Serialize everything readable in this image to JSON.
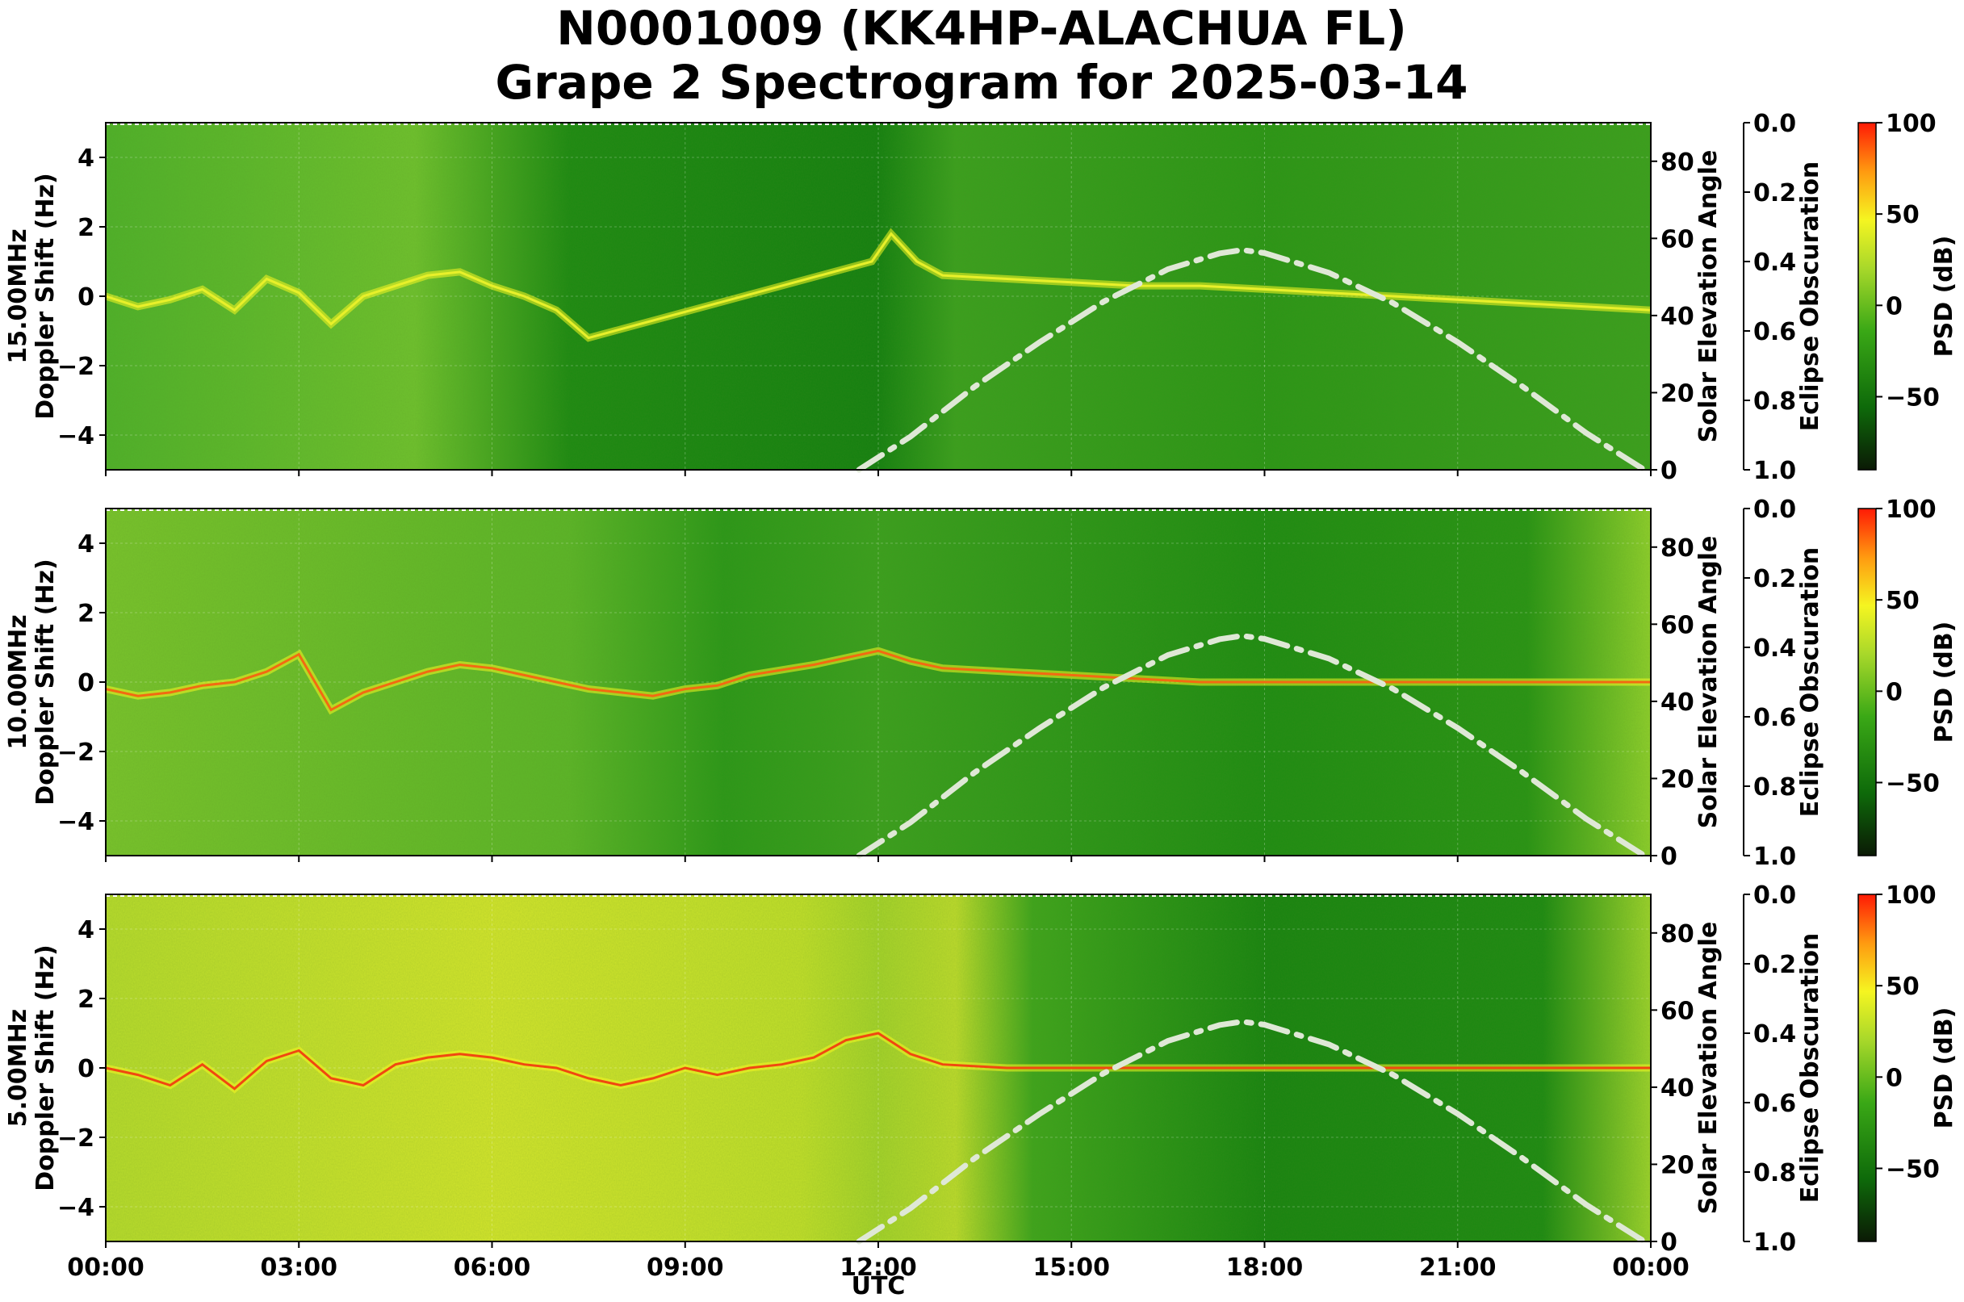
{
  "title_line1": "N0001009 (KK4HP-ALACHUA FL)",
  "title_line2": "Grape 2 Spectrogram for 2025-03-14",
  "chart_data": {
    "type": "heatmap",
    "shared_x": {
      "label": "UTC",
      "ticks": [
        "00:00",
        "03:00",
        "06:00",
        "09:00",
        "12:00",
        "15:00",
        "18:00",
        "21:00",
        "00:00"
      ],
      "range_hours": [
        0,
        24
      ]
    },
    "ylabel": "Doppler Shift (Hz)",
    "ylim": [
      -5,
      5
    ],
    "y_ticks": [
      4,
      2,
      0,
      -2,
      -4
    ],
    "right_axis": {
      "label": "Solar Elevation Angle",
      "ylim": [
        0,
        90
      ],
      "ticks": [
        0,
        20,
        40,
        60,
        80
      ]
    },
    "obscuration_axis": {
      "label": "Eclipse Obscuration",
      "ylim": [
        1.0,
        0.0
      ],
      "ticks": [
        "0.0",
        "0.2",
        "0.4",
        "0.6",
        "0.8",
        "1.0"
      ]
    },
    "colorbar": {
      "label": "PSD (dB)",
      "range": [
        -90,
        100
      ],
      "ticks": [
        "100",
        "50",
        "0",
        "−50"
      ],
      "colors": [
        "#0b1a05",
        "#0e6a0a",
        "#3aa816",
        "#a8d82a",
        "#f5f521",
        "#ff9a10",
        "#ff1a05"
      ]
    },
    "solar_elevation": {
      "x_hours": [
        11.7,
        12.5,
        13.5,
        14.5,
        15.5,
        16.5,
        17.3,
        17.65,
        18.0,
        19.0,
        20.0,
        21.0,
        22.0,
        23.0,
        23.9
      ],
      "values": [
        0,
        8.6,
        21.6,
        33.0,
        43.6,
        52.0,
        56.1,
        57.0,
        56.2,
        51.1,
        43.2,
        33.1,
        21.7,
        9.5,
        0
      ]
    },
    "panels": [
      {
        "freq_label": "15.00MHz",
        "trace_x_hours": [
          0,
          0.5,
          1,
          1.5,
          2,
          2.5,
          3,
          3.5,
          4,
          4.5,
          5,
          5.5,
          6,
          6.5,
          7,
          7.5,
          11.9,
          12.2,
          12.6,
          13,
          14,
          15,
          16,
          17,
          18,
          19,
          20,
          21,
          22,
          23,
          24
        ],
        "trace_values": [
          0,
          -0.3,
          -0.1,
          0.2,
          -0.4,
          0.5,
          0.1,
          -0.8,
          0.0,
          0.3,
          0.6,
          0.7,
          0.3,
          0.0,
          -0.4,
          -1.2,
          1.0,
          1.8,
          1.0,
          0.6,
          0.5,
          0.4,
          0.3,
          0.3,
          0.2,
          0.1,
          0.0,
          -0.1,
          -0.2,
          -0.3,
          -0.4
        ]
      },
      {
        "freq_label": "10.00MHz",
        "trace_x_hours": [
          0,
          0.5,
          1,
          1.5,
          2,
          2.5,
          3,
          3.5,
          4,
          4.5,
          5,
          5.5,
          6,
          6.5,
          7,
          7.5,
          8,
          8.5,
          9,
          9.5,
          10,
          11,
          12,
          12.5,
          13,
          14,
          15,
          16,
          17,
          18,
          19,
          20,
          21,
          22,
          23,
          24
        ],
        "trace_values": [
          -0.2,
          -0.4,
          -0.3,
          -0.1,
          0.0,
          0.3,
          0.8,
          -0.8,
          -0.3,
          0.0,
          0.3,
          0.5,
          0.4,
          0.2,
          0.0,
          -0.2,
          -0.3,
          -0.4,
          -0.2,
          -0.1,
          0.2,
          0.5,
          0.9,
          0.6,
          0.4,
          0.3,
          0.2,
          0.1,
          0.0,
          0.0,
          0.0,
          0.0,
          0.0,
          0.0,
          0.0,
          0.0
        ]
      },
      {
        "freq_label": "5.00MHz",
        "trace_x_hours": [
          0,
          0.5,
          1,
          1.5,
          2,
          2.5,
          3,
          3.5,
          4,
          4.5,
          5,
          5.5,
          6,
          6.5,
          7,
          7.5,
          8,
          8.5,
          9,
          9.5,
          10,
          10.5,
          11,
          11.5,
          12,
          12.5,
          13,
          14,
          16,
          18,
          20,
          22,
          24
        ],
        "trace_values": [
          0,
          -0.2,
          -0.5,
          0.1,
          -0.6,
          0.2,
          0.5,
          -0.3,
          -0.5,
          0.1,
          0.3,
          0.4,
          0.3,
          0.1,
          0.0,
          -0.3,
          -0.5,
          -0.3,
          0.0,
          -0.2,
          0.0,
          0.1,
          0.3,
          0.8,
          1.0,
          0.4,
          0.1,
          0.0,
          0.0,
          0.0,
          0.0,
          0.0,
          0.0
        ]
      }
    ]
  }
}
